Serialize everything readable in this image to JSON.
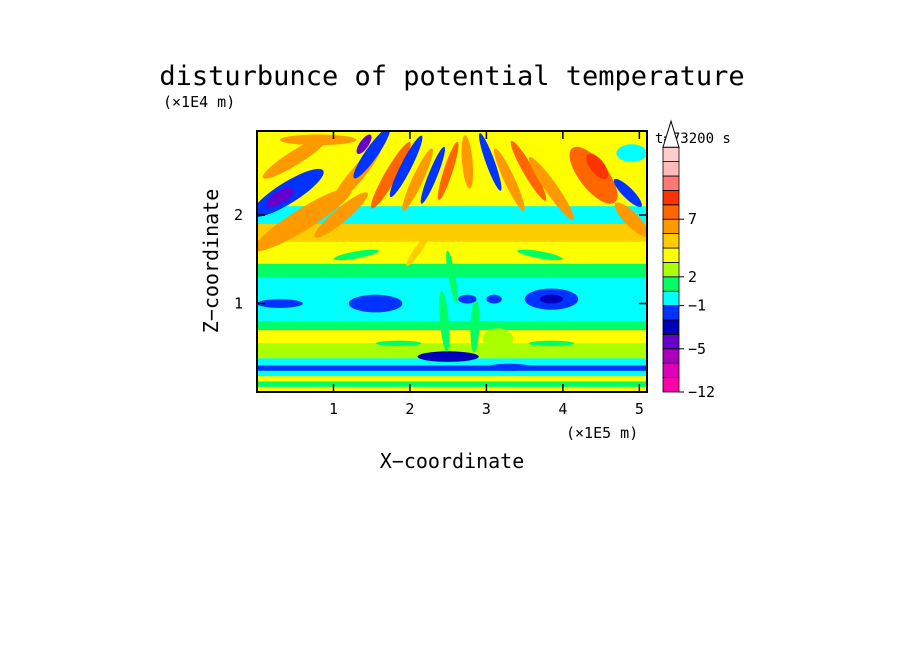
{
  "chart_data": {
    "type": "heatmap",
    "title": "disturbunce of potential temperature",
    "time_label": "t=73200 s",
    "xlabel": "X−coordinate",
    "ylabel": "Z−coordinate",
    "x_unit": "(×1E5 m)",
    "y_unit": "(×1E4 m)",
    "xlim": [
      0,
      5.1
    ],
    "ylim": [
      0,
      2.95
    ],
    "x_ticks": [
      {
        "value": 1,
        "label": "1"
      },
      {
        "value": 2,
        "label": "2"
      },
      {
        "value": 3,
        "label": "3"
      },
      {
        "value": 4,
        "label": "4"
      },
      {
        "value": 5,
        "label": "5"
      }
    ],
    "y_ticks": [
      {
        "value": 1,
        "label": "1"
      },
      {
        "value": 2,
        "label": "2"
      }
    ],
    "grid": false,
    "colorbar": {
      "placement": "right",
      "extend": "max",
      "levels": [
        {
          "color": "#ff00aa"
        },
        {
          "color": "#dd00bb"
        },
        {
          "color": "#aa00bb"
        },
        {
          "color": "#6600cc"
        },
        {
          "color": "#0000bb"
        },
        {
          "color": "#0033ff"
        },
        {
          "color": "#00ffff"
        },
        {
          "color": "#00ff66"
        },
        {
          "color": "#aaff00"
        },
        {
          "color": "#ffff00"
        },
        {
          "color": "#ffcc00"
        },
        {
          "color": "#ff9900"
        },
        {
          "color": "#ff6600"
        },
        {
          "color": "#ff3300"
        },
        {
          "color": "#ff7777"
        },
        {
          "color": "#ffbbbb"
        },
        {
          "color": "#ffcccc"
        }
      ],
      "tick_labels": [
        {
          "level": 0,
          "label": "−12"
        },
        {
          "level": 3,
          "label": "−5"
        },
        {
          "level": 6,
          "label": "−1"
        },
        {
          "level": 8,
          "label": "2"
        },
        {
          "level": 12,
          "label": "7"
        }
      ]
    },
    "bands": [
      {
        "zmin": 0.0,
        "zmax": 0.06,
        "color": "#ffff00"
      },
      {
        "zmin": 0.06,
        "zmax": 0.12,
        "color": "#00ff66"
      },
      {
        "zmin": 0.12,
        "zmax": 0.18,
        "color": "#ffff00"
      },
      {
        "zmin": 0.18,
        "zmax": 0.24,
        "color": "#00ffff"
      },
      {
        "zmin": 0.24,
        "zmax": 0.3,
        "color": "#0033ff"
      },
      {
        "zmin": 0.3,
        "zmax": 0.38,
        "color": "#00ffff"
      },
      {
        "zmin": 0.38,
        "zmax": 0.55,
        "color": "#aaff00"
      },
      {
        "zmin": 0.55,
        "zmax": 0.7,
        "color": "#ffff00"
      },
      {
        "zmin": 0.7,
        "zmax": 0.8,
        "color": "#00ff66"
      },
      {
        "zmin": 0.8,
        "zmax": 1.3,
        "color": "#00ffff"
      },
      {
        "zmin": 1.3,
        "zmax": 1.45,
        "color": "#00ff66"
      },
      {
        "zmin": 1.45,
        "zmax": 1.7,
        "color": "#ffff00"
      },
      {
        "zmin": 1.7,
        "zmax": 1.9,
        "color": "#ffcc00"
      },
      {
        "zmin": 1.9,
        "zmax": 2.1,
        "color": "#00ffff"
      },
      {
        "zmin": 2.1,
        "zmax": 2.95,
        "color": "#ffff00"
      }
    ],
    "features": [
      {
        "shape": "ellipse",
        "cx": 0.3,
        "cy": 1.0,
        "rx": 0.3,
        "ry": 0.05,
        "angle": 0,
        "color": "#0033ff"
      },
      {
        "shape": "ellipse",
        "cx": 1.55,
        "cy": 1.0,
        "rx": 0.35,
        "ry": 0.1,
        "angle": 0,
        "color": "#0033ff"
      },
      {
        "shape": "ellipse",
        "cx": 3.85,
        "cy": 1.05,
        "rx": 0.35,
        "ry": 0.12,
        "angle": 0,
        "color": "#0033ff"
      },
      {
        "shape": "ellipse",
        "cx": 3.85,
        "cy": 1.05,
        "rx": 0.15,
        "ry": 0.05,
        "angle": 0,
        "color": "#0000bb"
      },
      {
        "shape": "ellipse",
        "cx": 2.5,
        "cy": 0.4,
        "rx": 0.4,
        "ry": 0.06,
        "angle": 0,
        "color": "#0000bb"
      },
      {
        "shape": "ellipse",
        "cx": 3.3,
        "cy": 0.28,
        "rx": 0.3,
        "ry": 0.04,
        "angle": 0,
        "color": "#0033ff"
      },
      {
        "shape": "ellipse",
        "cx": 0.6,
        "cy": 1.95,
        "rx": 0.75,
        "ry": 0.12,
        "angle": 32,
        "color": "#ff9900"
      },
      {
        "shape": "ellipse",
        "cx": 0.4,
        "cy": 2.25,
        "rx": 0.55,
        "ry": 0.12,
        "angle": 32,
        "color": "#0033ff"
      },
      {
        "shape": "ellipse",
        "cx": 0.3,
        "cy": 2.2,
        "rx": 0.2,
        "ry": 0.07,
        "angle": 32,
        "color": "#6600cc"
      },
      {
        "shape": "ellipse",
        "cx": 0.5,
        "cy": 2.65,
        "rx": 0.5,
        "ry": 0.08,
        "angle": 32,
        "color": "#ff9900"
      },
      {
        "shape": "ellipse",
        "cx": 0.8,
        "cy": 2.85,
        "rx": 0.5,
        "ry": 0.06,
        "angle": 0,
        "color": "#ff9900"
      },
      {
        "shape": "ellipse",
        "cx": 1.1,
        "cy": 2.0,
        "rx": 0.45,
        "ry": 0.08,
        "angle": 40,
        "color": "#ff9900"
      },
      {
        "shape": "ellipse",
        "cx": 1.3,
        "cy": 2.45,
        "rx": 0.5,
        "ry": 0.08,
        "angle": 50,
        "color": "#ff9900"
      },
      {
        "shape": "ellipse",
        "cx": 1.5,
        "cy": 2.7,
        "rx": 0.4,
        "ry": 0.07,
        "angle": 55,
        "color": "#0033ff"
      },
      {
        "shape": "ellipse",
        "cx": 1.4,
        "cy": 2.8,
        "rx": 0.15,
        "ry": 0.05,
        "angle": 55,
        "color": "#6600cc"
      },
      {
        "shape": "ellipse",
        "cx": 1.75,
        "cy": 2.45,
        "rx": 0.5,
        "ry": 0.07,
        "angle": 60,
        "color": "#ff6600"
      },
      {
        "shape": "ellipse",
        "cx": 1.95,
        "cy": 2.55,
        "rx": 0.45,
        "ry": 0.06,
        "angle": 63,
        "color": "#0033ff"
      },
      {
        "shape": "ellipse",
        "cx": 2.1,
        "cy": 2.4,
        "rx": 0.45,
        "ry": 0.06,
        "angle": 65,
        "color": "#ff9900"
      },
      {
        "shape": "ellipse",
        "cx": 2.3,
        "cy": 2.45,
        "rx": 0.4,
        "ry": 0.05,
        "angle": 68,
        "color": "#0033ff"
      },
      {
        "shape": "ellipse",
        "cx": 2.5,
        "cy": 2.5,
        "rx": 0.4,
        "ry": 0.05,
        "angle": 72,
        "color": "#ff6600"
      },
      {
        "shape": "ellipse",
        "cx": 2.75,
        "cy": 2.6,
        "rx": 0.35,
        "ry": 0.06,
        "angle": 95,
        "color": "#ff9900"
      },
      {
        "shape": "ellipse",
        "cx": 3.05,
        "cy": 2.6,
        "rx": 0.4,
        "ry": 0.05,
        "angle": 110,
        "color": "#0033ff"
      },
      {
        "shape": "ellipse",
        "cx": 3.3,
        "cy": 2.4,
        "rx": 0.45,
        "ry": 0.06,
        "angle": 115,
        "color": "#ff9900"
      },
      {
        "shape": "ellipse",
        "cx": 3.55,
        "cy": 2.5,
        "rx": 0.45,
        "ry": 0.06,
        "angle": 120,
        "color": "#ff6600"
      },
      {
        "shape": "ellipse",
        "cx": 3.85,
        "cy": 2.3,
        "rx": 0.5,
        "ry": 0.07,
        "angle": 125,
        "color": "#ff9900"
      },
      {
        "shape": "ellipse",
        "cx": 4.4,
        "cy": 2.45,
        "rx": 0.45,
        "ry": 0.16,
        "angle": 128,
        "color": "#ff6600"
      },
      {
        "shape": "ellipse",
        "cx": 4.45,
        "cy": 2.55,
        "rx": 0.2,
        "ry": 0.08,
        "angle": 128,
        "color": "#ff3300"
      },
      {
        "shape": "ellipse",
        "cx": 4.85,
        "cy": 2.25,
        "rx": 0.25,
        "ry": 0.06,
        "angle": 135,
        "color": "#0033ff"
      },
      {
        "shape": "ellipse",
        "cx": 4.9,
        "cy": 1.95,
        "rx": 0.3,
        "ry": 0.08,
        "angle": 135,
        "color": "#ff9900"
      },
      {
        "shape": "ellipse",
        "cx": 4.9,
        "cy": 2.7,
        "rx": 0.2,
        "ry": 0.1,
        "angle": 0,
        "color": "#00ffff"
      },
      {
        "shape": "ellipse",
        "cx": 2.55,
        "cy": 1.3,
        "rx": 0.35,
        "ry": 0.04,
        "angle": 100,
        "color": "#00ff66"
      },
      {
        "shape": "ellipse",
        "cx": 2.45,
        "cy": 0.8,
        "rx": 0.4,
        "ry": 0.05,
        "angle": 95,
        "color": "#00ff66"
      },
      {
        "shape": "ellipse",
        "cx": 2.85,
        "cy": 0.75,
        "rx": 0.35,
        "ry": 0.05,
        "angle": 88,
        "color": "#00ff66"
      },
      {
        "shape": "ellipse",
        "cx": 3.15,
        "cy": 0.6,
        "rx": 0.2,
        "ry": 0.12,
        "angle": 0,
        "color": "#aaff00"
      },
      {
        "shape": "ellipse",
        "cx": 2.75,
        "cy": 1.05,
        "rx": 0.12,
        "ry": 0.05,
        "angle": 0,
        "color": "#0033ff"
      },
      {
        "shape": "ellipse",
        "cx": 3.1,
        "cy": 1.05,
        "rx": 0.1,
        "ry": 0.05,
        "angle": 0,
        "color": "#0033ff"
      },
      {
        "shape": "ellipse",
        "cx": 2.1,
        "cy": 1.6,
        "rx": 0.25,
        "ry": 0.04,
        "angle": 55,
        "color": "#ffcc00"
      },
      {
        "shape": "ellipse",
        "cx": 1.3,
        "cy": 1.55,
        "rx": 0.3,
        "ry": 0.04,
        "angle": 10,
        "color": "#00ff66"
      },
      {
        "shape": "ellipse",
        "cx": 3.7,
        "cy": 1.55,
        "rx": 0.3,
        "ry": 0.04,
        "angle": 170,
        "color": "#00ff66"
      },
      {
        "shape": "ellipse",
        "cx": 1.85,
        "cy": 0.55,
        "rx": 0.3,
        "ry": 0.03,
        "angle": 0,
        "color": "#00ff66"
      },
      {
        "shape": "ellipse",
        "cx": 3.85,
        "cy": 0.55,
        "rx": 0.3,
        "ry": 0.03,
        "angle": 0,
        "color": "#00ff66"
      }
    ]
  }
}
